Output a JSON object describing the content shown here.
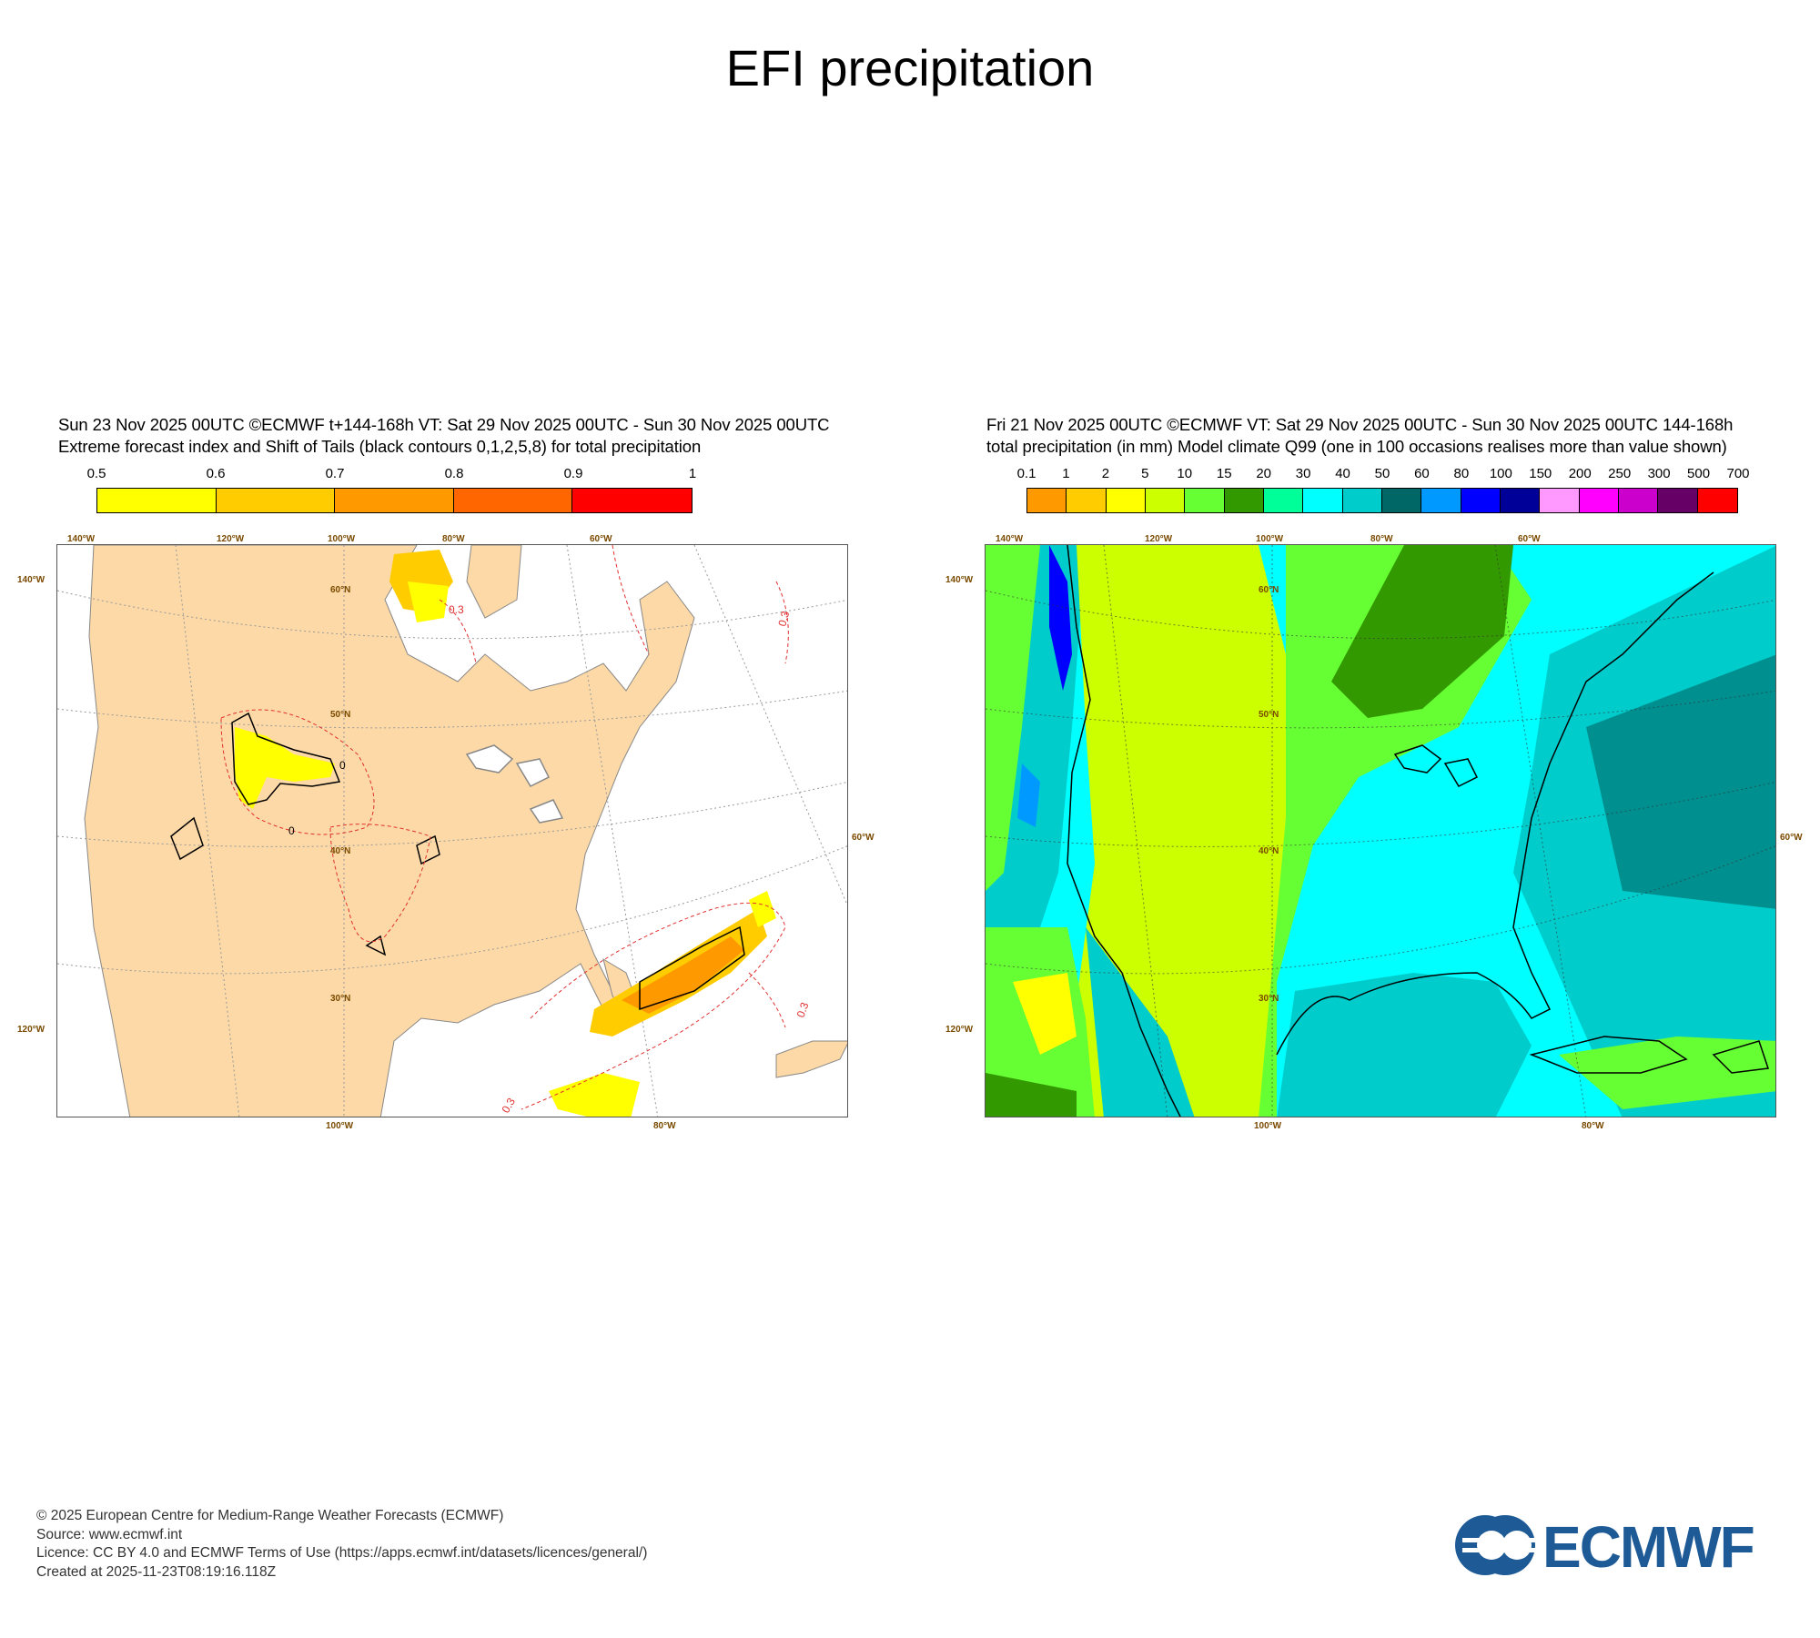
{
  "page": {
    "title": "EFI precipitation"
  },
  "panels": [
    {
      "header_line1": "Sun 23 Nov 2025 00UTC ©ECMWF t+144-168h  VT: Sat 29 Nov 2025 00UTC - Sun 30 Nov 2025 00UTC",
      "header_line2": "Extreme forecast index and Shift of Tails (black contours 0,1,2,5,8) for total precipitation",
      "colorbar": {
        "ticks": [
          "0.5",
          "0.6",
          "0.7",
          "0.8",
          "0.9",
          "1"
        ],
        "colors": [
          "#ffff00",
          "#ffcc00",
          "#ff9900",
          "#ff6600",
          "#ff0000"
        ]
      },
      "axis_labels": {
        "top": [
          "140°W",
          "120°W",
          "100°W",
          "80°W",
          "60°W"
        ],
        "left": [
          "140°W",
          "120°W"
        ],
        "right": [
          "60°W"
        ],
        "bottom": [
          "100°W",
          "80°W"
        ],
        "lat": [
          "60°N",
          "50°N",
          "40°N",
          "30°N"
        ]
      },
      "contour_labels": [
        "0.3",
        "0"
      ]
    },
    {
      "header_line1": "Fri 21 Nov 2025 00UTC ©ECMWF VT: Sat 29 Nov 2025 00UTC - Sun 30 Nov 2025 00UTC   144-168h",
      "header_line2": "total precipitation (in mm)  Model climate Q99 (one in 100 occasions realises more than value shown)",
      "colorbar": {
        "ticks": [
          "0.1",
          "1",
          "2",
          "5",
          "10",
          "15",
          "20",
          "30",
          "40",
          "50",
          "60",
          "80",
          "100",
          "150",
          "200",
          "250",
          "300",
          "500",
          "700"
        ],
        "colors": [
          "#ff9900",
          "#ffcc00",
          "#ffff00",
          "#ccff00",
          "#66ff33",
          "#339900",
          "#00ff99",
          "#00ffff",
          "#00cccc",
          "#006666",
          "#0099ff",
          "#0000ff",
          "#000099",
          "#ff99ff",
          "#ff00ff",
          "#cc00cc",
          "#660066",
          "#ff0000"
        ]
      },
      "axis_labels": {
        "top": [
          "140°W",
          "120°W",
          "100°W",
          "80°W",
          "60°W"
        ],
        "left": [
          "140°W",
          "120°W"
        ],
        "right": [
          "60°W"
        ],
        "bottom": [
          "100°W",
          "80°W"
        ],
        "lat": [
          "60°N",
          "50°N",
          "40°N",
          "30°N"
        ]
      }
    }
  ],
  "footer": {
    "line1": "© 2025 European Centre for Medium-Range Weather Forecasts (ECMWF)",
    "line2": "Source: www.ecmwf.int",
    "line3": "Licence: CC BY 4.0 and ECMWF Terms of Use (https://apps.ecmwf.int/datasets/licences/general/)",
    "line4": "Created at 2025-11-23T08:19:16.118Z"
  },
  "logo": {
    "text": "ECMWF",
    "color": "#1d5a96"
  }
}
